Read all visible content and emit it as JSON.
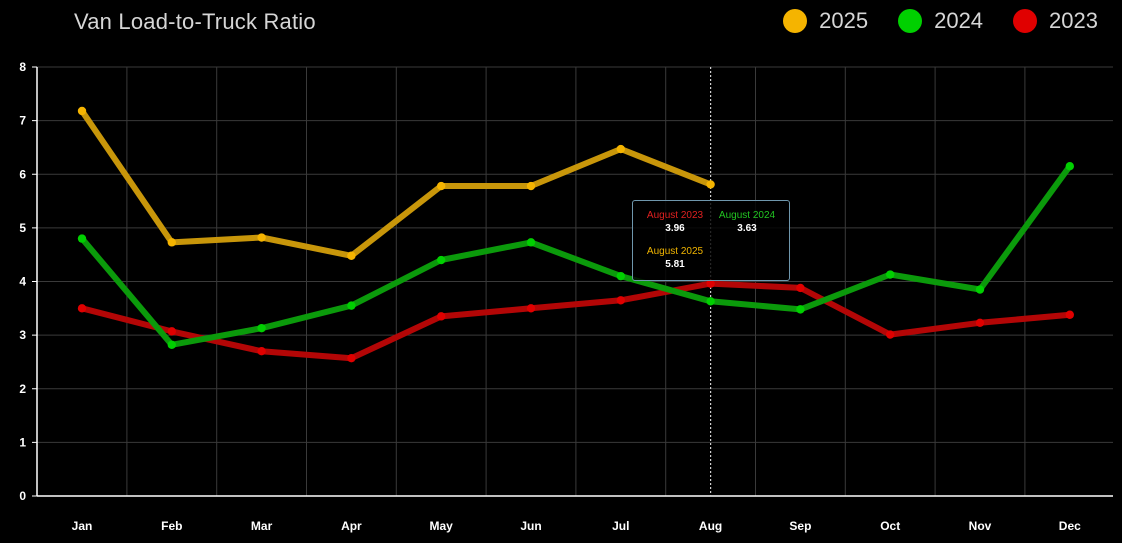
{
  "chart_data": {
    "type": "line",
    "title": "Van Load-to-Truck Ratio",
    "categories": [
      "Jan",
      "Feb",
      "Mar",
      "Apr",
      "May",
      "Jun",
      "Jul",
      "Aug",
      "Sep",
      "Oct",
      "Nov",
      "Dec"
    ],
    "ylim": [
      0,
      8
    ],
    "yticks": [
      0,
      1,
      2,
      3,
      4,
      5,
      6,
      7,
      8
    ],
    "grid": true,
    "legend_position": "top-right",
    "series": [
      {
        "name": "2025",
        "color": "#f5b400",
        "line_color": "#c8960a",
        "values": [
          7.18,
          4.73,
          4.82,
          4.48,
          5.78,
          5.78,
          6.47,
          5.81,
          null,
          null,
          null,
          null
        ]
      },
      {
        "name": "2024",
        "color": "#00d000",
        "line_color": "#0b9a0b",
        "values": [
          4.8,
          2.82,
          3.13,
          3.55,
          4.4,
          4.73,
          4.1,
          3.63,
          3.48,
          4.13,
          3.85,
          6.15
        ]
      },
      {
        "name": "2023",
        "color": "#e00000",
        "line_color": "#b30606",
        "values": [
          3.5,
          3.07,
          2.7,
          2.57,
          3.35,
          3.5,
          3.65,
          3.96,
          3.88,
          3.01,
          3.23,
          3.38
        ]
      }
    ],
    "tooltip": {
      "month": "Aug",
      "entries": [
        {
          "label": "August 2023",
          "value": "3.96",
          "color": "#e02020"
        },
        {
          "label": "August 2024",
          "value": "3.63",
          "color": "#22c522"
        },
        {
          "label": "August 2025",
          "value": "5.81",
          "color": "#f0b400"
        }
      ]
    }
  }
}
